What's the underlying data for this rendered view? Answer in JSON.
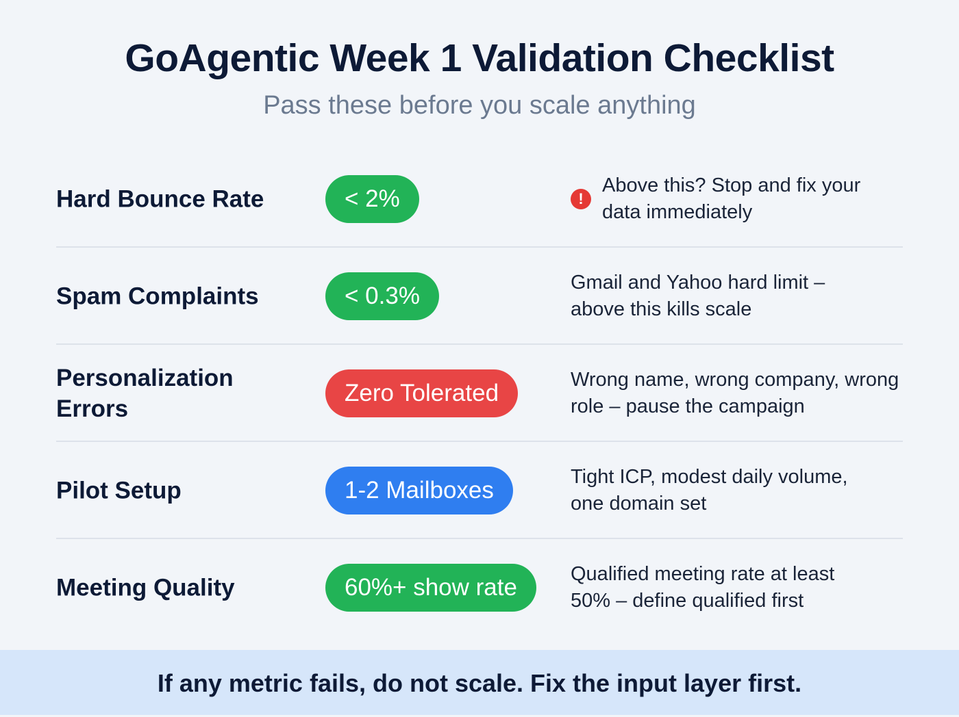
{
  "header": {
    "title": "GoAgentic Week 1 Validation Checklist",
    "subtitle": "Pass these before you scale anything"
  },
  "rows": [
    {
      "label": "Hard Bounce Rate",
      "badge": "< 2%",
      "badge_color": "#22b357",
      "icon": "alert-circle-icon",
      "description": "Above this? Stop and fix your data immediately"
    },
    {
      "label": "Spam Complaints",
      "badge": "< 0.3%",
      "badge_color": "#22b357",
      "description": "Gmail and Yahoo hard limit – above this kills scale"
    },
    {
      "label": "Personalization Errors",
      "badge": "Zero Tolerated",
      "badge_color": "#e84545",
      "description": "Wrong name, wrong company, wrong role – pause the campaign"
    },
    {
      "label": "Pilot Setup",
      "badge": "1-2 Mailboxes",
      "badge_color": "#2f7ef0",
      "description": "Tight ICP, modest daily volume, one domain set"
    },
    {
      "label": "Meeting Quality",
      "badge": "60%+ show rate",
      "badge_color": "#22b357",
      "description": "Qualified meeting rate at least 50% – define qualified first"
    }
  ],
  "footer": {
    "text": "If any metric fails, do not scale. Fix the input layer first."
  }
}
